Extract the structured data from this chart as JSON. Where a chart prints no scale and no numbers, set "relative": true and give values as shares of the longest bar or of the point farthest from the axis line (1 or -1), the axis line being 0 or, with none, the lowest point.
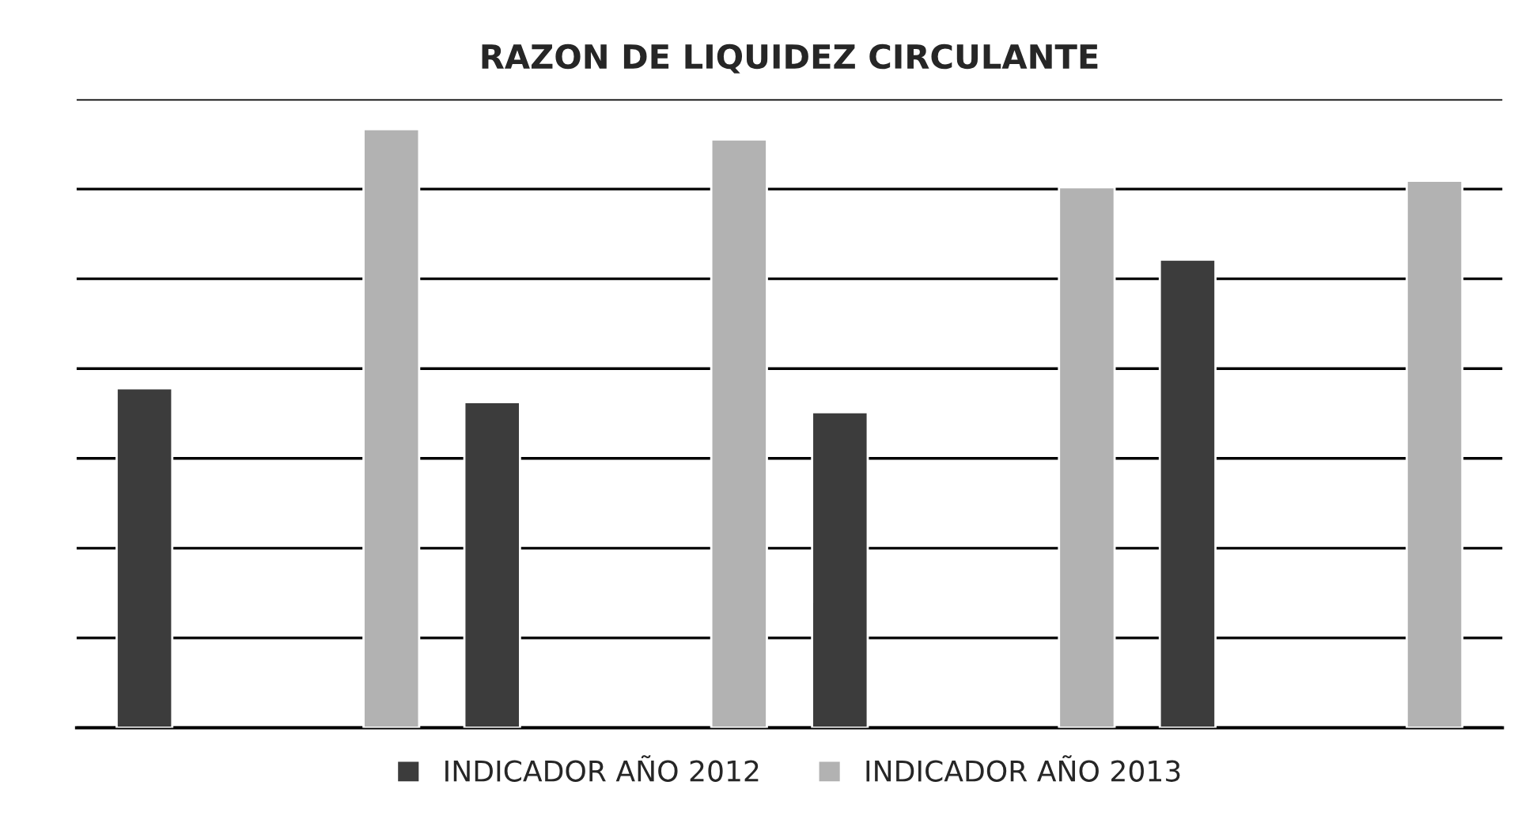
{
  "chart_data": {
    "type": "bar",
    "title": "RAZON DE LIQUIDEZ CIRCULANTE",
    "categories": [
      null,
      null,
      null,
      null
    ],
    "relative": true,
    "grid": "y",
    "legend": "bottom",
    "series": [
      {
        "name": "INDICADOR AÑO 2012",
        "color": "#3c3c3c",
        "values": [
          0.567,
          0.544,
          0.527,
          0.782
        ]
      },
      {
        "name": "INDICADOR AÑO 2013",
        "color": "#b2b2b2",
        "values": [
          1,
          0.983,
          0.903,
          0.914
        ]
      }
    ]
  }
}
